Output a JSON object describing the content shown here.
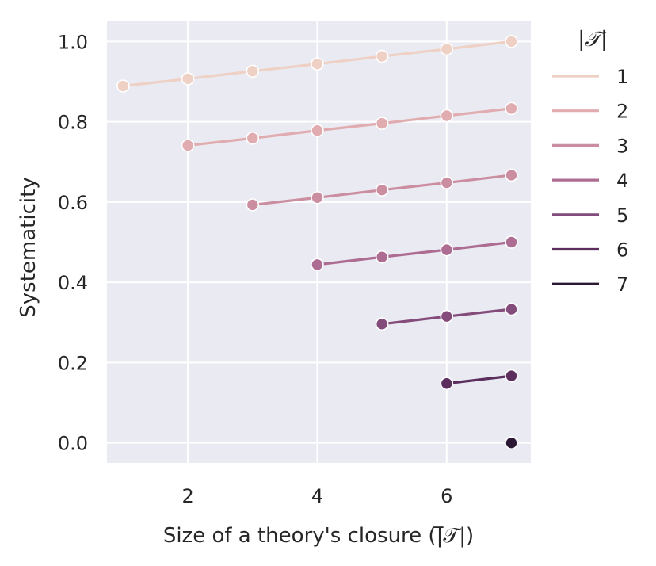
{
  "chart_data": {
    "type": "line",
    "title": "",
    "xlabel": "Size of a theory's closure (|̅𝒯|)",
    "ylabel": "Systematicity",
    "xlim": [
      0.75,
      7.3
    ],
    "ylim": [
      -0.05,
      1.05
    ],
    "x_ticks": [
      2,
      4,
      6
    ],
    "y_ticks": [
      0.0,
      0.2,
      0.4,
      0.6,
      0.8,
      1.0
    ],
    "x_tick_labels": [
      "2",
      "4",
      "6"
    ],
    "y_tick_labels": [
      "0.0",
      "0.2",
      "0.4",
      "0.6",
      "0.8",
      "1.0"
    ],
    "grid": true,
    "legend_title": "|𝒯|",
    "legend_position": "outside-right",
    "series": [
      {
        "name": "1",
        "color": "#eed0c4",
        "x": [
          1,
          2,
          3,
          4,
          5,
          6,
          7
        ],
        "y": [
          0.889,
          0.907,
          0.926,
          0.944,
          0.963,
          0.981,
          1.0
        ]
      },
      {
        "name": "2",
        "color": "#e0acaf",
        "x": [
          2,
          3,
          4,
          5,
          6,
          7
        ],
        "y": [
          0.741,
          0.759,
          0.778,
          0.796,
          0.815,
          0.833
        ]
      },
      {
        "name": "3",
        "color": "#cb8ea0",
        "x": [
          3,
          4,
          5,
          6,
          7
        ],
        "y": [
          0.593,
          0.611,
          0.63,
          0.648,
          0.667
        ]
      },
      {
        "name": "4",
        "color": "#ad6c92",
        "x": [
          4,
          5,
          6,
          7
        ],
        "y": [
          0.444,
          0.463,
          0.481,
          0.5
        ]
      },
      {
        "name": "5",
        "color": "#844c7b",
        "x": [
          5,
          6,
          7
        ],
        "y": [
          0.296,
          0.315,
          0.333
        ]
      },
      {
        "name": "6",
        "color": "#5b2e5e",
        "x": [
          6,
          7
        ],
        "y": [
          0.148,
          0.167
        ]
      },
      {
        "name": "7",
        "color": "#2b1834",
        "x": [
          7
        ],
        "y": [
          0.0
        ]
      }
    ]
  }
}
